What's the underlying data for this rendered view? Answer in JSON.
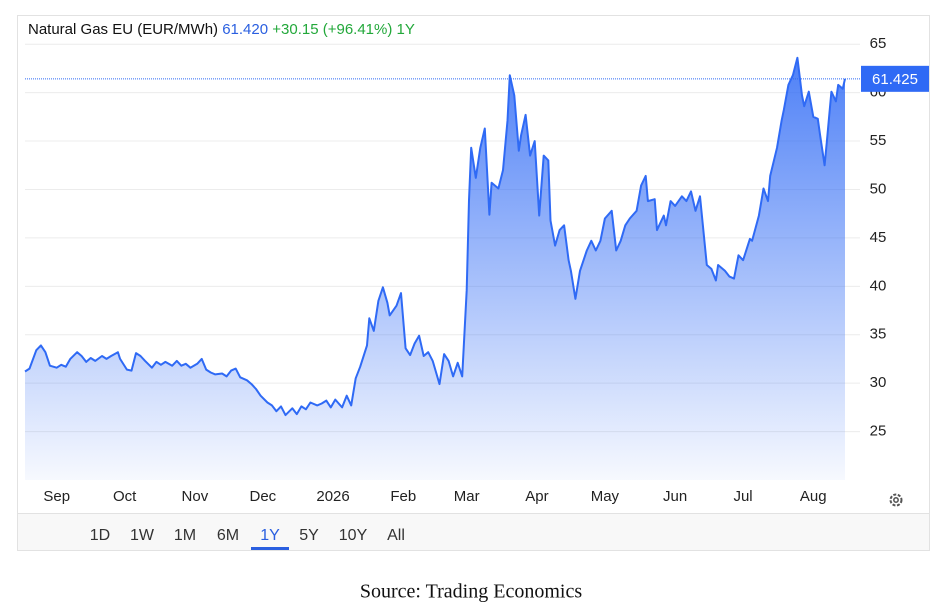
{
  "chart_data": {
    "type": "line",
    "title": "Natural Gas EU (EUR/MWh)",
    "price": "61.420",
    "change": "+30.15 (+96.41%)",
    "period": "1Y",
    "last_value": 61.425,
    "x": [
      0,
      2,
      5,
      7,
      9,
      11,
      14,
      16,
      18,
      20,
      23,
      25,
      27,
      29,
      31,
      34,
      36,
      38,
      41,
      42,
      45,
      47,
      49,
      51,
      53,
      56,
      58,
      60,
      62,
      65,
      67,
      69,
      71,
      73,
      76,
      78,
      80,
      82,
      84,
      87,
      89,
      91,
      93,
      95,
      98,
      100,
      102,
      104,
      107,
      109,
      111,
      113,
      115,
      118,
      120,
      122,
      124,
      126,
      129,
      131,
      133,
      135,
      137,
      140,
      142,
      144,
      146,
      148,
      151,
      152,
      154,
      156,
      158,
      160,
      161,
      164,
      166,
      168,
      170,
      172,
      174,
      176,
      178,
      180,
      183,
      185,
      187,
      189,
      191,
      193,
      195,
      196,
      197,
      199,
      201,
      203,
      205,
      206,
      209,
      211,
      213,
      214,
      216,
      218,
      219,
      221,
      223,
      225,
      227,
      229,
      231,
      232,
      234,
      236,
      238,
      240,
      241,
      243,
      245,
      248,
      250,
      252,
      254,
      256,
      259,
      261,
      263,
      265,
      267,
      270,
      272,
      274,
      275,
      278,
      279,
      282,
      283,
      285,
      287,
      290,
      292,
      294,
      296,
      298,
      301,
      303,
      305,
      306,
      309,
      311,
      313,
      315,
      317,
      320,
      321,
      324,
      326,
      328,
      329,
      332,
      334,
      335,
      337,
      339,
      341,
      343,
      344,
      346,
      348,
      350,
      351,
      353,
      354,
      356,
      358,
      359,
      361,
      362
    ],
    "series": [
      {
        "name": "Natural Gas EU",
        "color": "#2f6af5",
        "values": [
          31.2,
          31.5,
          33.4,
          33.9,
          33.2,
          31.8,
          31.6,
          31.9,
          31.7,
          32.5,
          33.2,
          32.8,
          32.2,
          32.6,
          32.3,
          32.8,
          32.5,
          32.8,
          33.2,
          32.5,
          31.4,
          31.3,
          33.1,
          32.8,
          32.3,
          31.6,
          32.2,
          31.9,
          32.2,
          31.8,
          32.3,
          31.8,
          32.0,
          31.6,
          32.0,
          32.5,
          31.4,
          31.1,
          30.9,
          31.0,
          30.7,
          31.3,
          31.5,
          30.6,
          30.3,
          29.9,
          29.4,
          28.7,
          28.0,
          27.7,
          27.1,
          27.6,
          26.7,
          27.4,
          26.8,
          27.6,
          27.3,
          28.0,
          27.7,
          27.9,
          28.2,
          27.5,
          28.3,
          27.5,
          28.7,
          27.7,
          30.5,
          31.7,
          33.9,
          36.7,
          35.4,
          38.5,
          39.9,
          38.3,
          37.0,
          38.0,
          39.3,
          33.6,
          32.9,
          34.1,
          34.9,
          32.8,
          33.2,
          32.3,
          29.9,
          33.0,
          32.3,
          30.7,
          32.1,
          30.7,
          39.6,
          48.9,
          54.3,
          51.2,
          54.3,
          56.3,
          47.4,
          50.7,
          50.1,
          52.0,
          57.1,
          61.8,
          59.7,
          54.0,
          55.6,
          57.7,
          53.5,
          55.0,
          47.3,
          53.5,
          53.0,
          46.8,
          44.2,
          45.8,
          46.3,
          42.7,
          41.6,
          38.7,
          41.6,
          43.7,
          44.7,
          43.7,
          44.7,
          47.0,
          47.8,
          43.7,
          44.7,
          46.3,
          47.0,
          47.8,
          50.4,
          51.4,
          48.8,
          49.0,
          45.8,
          47.3,
          46.3,
          48.8,
          48.3,
          49.3,
          48.8,
          49.8,
          47.8,
          49.3,
          42.2,
          41.8,
          40.6,
          42.2,
          41.6,
          41.0,
          40.8,
          43.2,
          42.7,
          44.9,
          44.7,
          47.3,
          50.1,
          48.8,
          51.4,
          54.3,
          57.1,
          58.2,
          60.8,
          61.8,
          63.6,
          59.7,
          58.6,
          60.1,
          57.5,
          57.3,
          55.6,
          52.5,
          55.0,
          60.1,
          59.1,
          60.8,
          60.4,
          61.42
        ]
      }
    ],
    "xlim": [
      0,
      362
    ],
    "xticks": [
      {
        "value": 14,
        "label": "Sep"
      },
      {
        "value": 44,
        "label": "Oct"
      },
      {
        "value": 75,
        "label": "Nov"
      },
      {
        "value": 105,
        "label": "Dec"
      },
      {
        "value": 136,
        "label": "2026"
      },
      {
        "value": 167,
        "label": "Feb"
      },
      {
        "value": 195,
        "label": "Mar"
      },
      {
        "value": 226,
        "label": "Apr"
      },
      {
        "value": 256,
        "label": "May"
      },
      {
        "value": 287,
        "label": "Jun"
      },
      {
        "value": 317,
        "label": "Jul"
      },
      {
        "value": 348,
        "label": "Aug"
      }
    ],
    "ylim": [
      20,
      67.5
    ],
    "yticks": [
      25,
      30,
      35,
      40,
      45,
      50,
      55,
      60,
      65
    ],
    "grid": true,
    "ranges": [
      "1D",
      "1W",
      "1M",
      "6M",
      "1Y",
      "5Y",
      "10Y",
      "All"
    ],
    "source": "Source: Trading Economics"
  }
}
